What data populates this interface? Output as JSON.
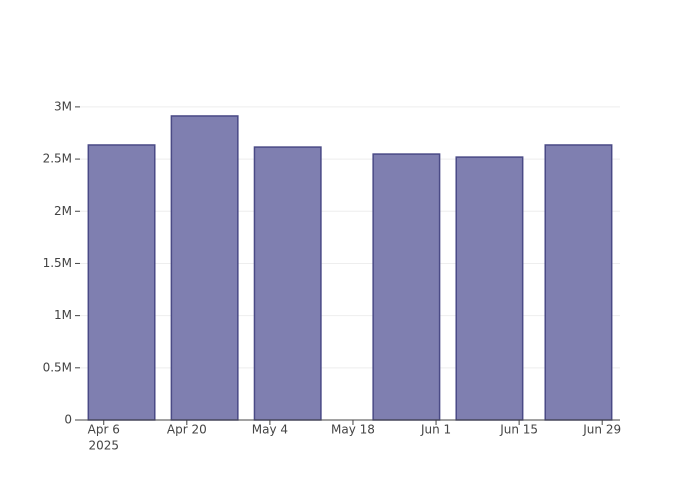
{
  "chart_data": {
    "type": "bar",
    "x": [
      "2025-04-09",
      "2025-04-23",
      "2025-05-07",
      "2025-05-27",
      "2025-06-10",
      "2025-06-25"
    ],
    "values": [
      2635000,
      2913000,
      2615000,
      2548000,
      2519000,
      2635000
    ],
    "color": "#7f7fb0",
    "edge_color": "#4a4a86",
    "xlim": [
      "2025-04-02",
      "2025-07-02"
    ],
    "xticks": [
      {
        "value": "2025-04-06",
        "label": "Apr 6"
      },
      {
        "value": "2025-04-20",
        "label": "Apr 20"
      },
      {
        "value": "2025-05-04",
        "label": "May 4"
      },
      {
        "value": "2025-05-18",
        "label": "May 18"
      },
      {
        "value": "2025-06-01",
        "label": "Jun 1"
      },
      {
        "value": "2025-06-15",
        "label": "Jun 15"
      },
      {
        "value": "2025-06-29",
        "label": "Jun 29"
      }
    ],
    "xtick_year": "2025",
    "ylim": [
      0,
      3066000
    ],
    "yticks": [
      0,
      {
        "value": 500000,
        "label": "0.5M"
      },
      {
        "value": 1000000,
        "label": "1M"
      },
      {
        "value": 1500000,
        "label": "1.5M"
      },
      {
        "value": 2000000,
        "label": "2M"
      },
      {
        "value": 2500000,
        "label": "2.5M"
      },
      {
        "value": 3000000,
        "label": "3M"
      }
    ],
    "grid": true
  }
}
